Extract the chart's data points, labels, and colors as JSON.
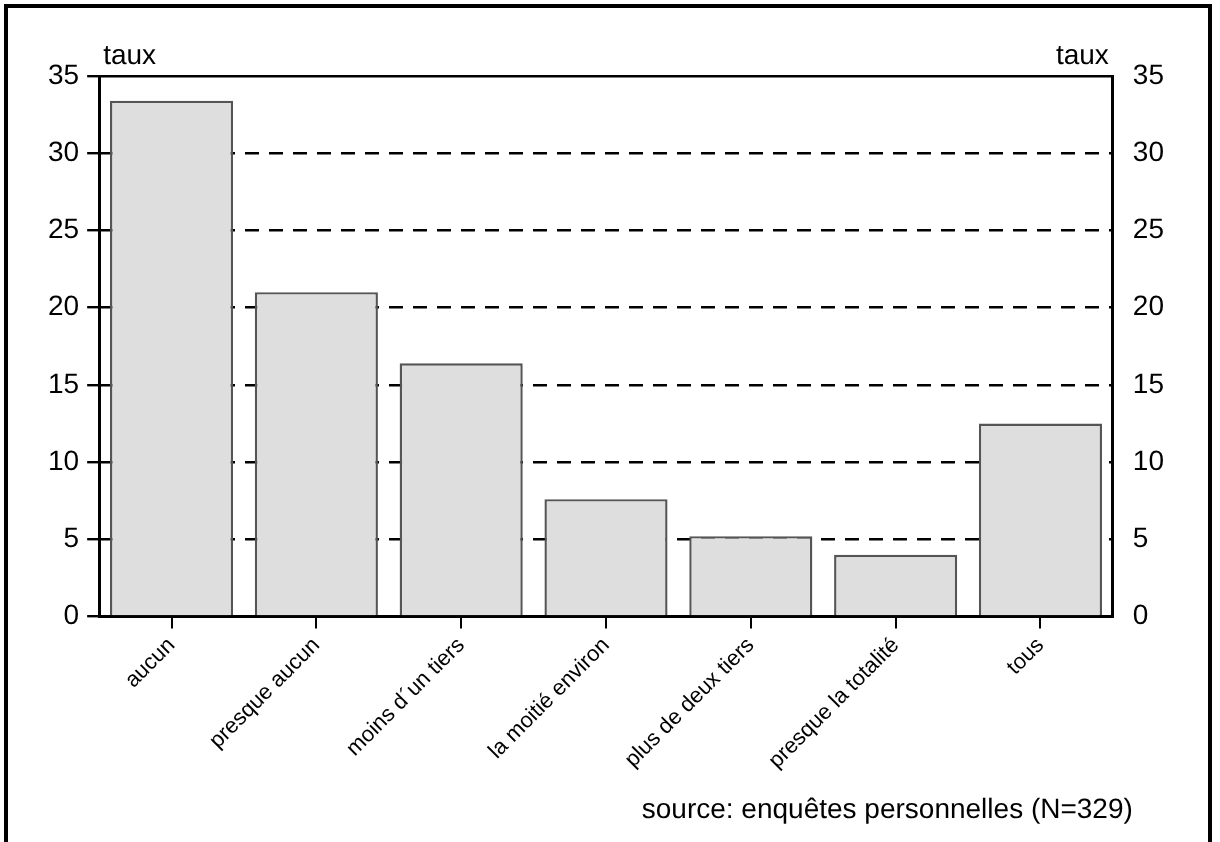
{
  "chart_data": {
    "type": "bar",
    "categories": [
      "aucun",
      "presque aucun",
      "moins d´un tiers",
      "la moitié environ",
      "plus de deux tiers",
      "presque la totalité",
      "tous"
    ],
    "values": [
      33.4,
      21.0,
      16.4,
      7.6,
      5.2,
      4.0,
      12.5
    ],
    "color": "#dedede",
    "ylabel": "taux",
    "y2label": "taux",
    "ylim": [
      0,
      35
    ],
    "yticks": [
      0,
      5,
      10,
      15,
      20,
      25,
      30,
      35
    ],
    "y2lim": [
      0,
      35
    ],
    "y2ticks": [
      0,
      5,
      10,
      15,
      20,
      25,
      30,
      35
    ],
    "grid": "y",
    "line_style": "dashed",
    "legend": false,
    "annotations": [
      "source: enquêtes personnelles (N=329)"
    ]
  }
}
